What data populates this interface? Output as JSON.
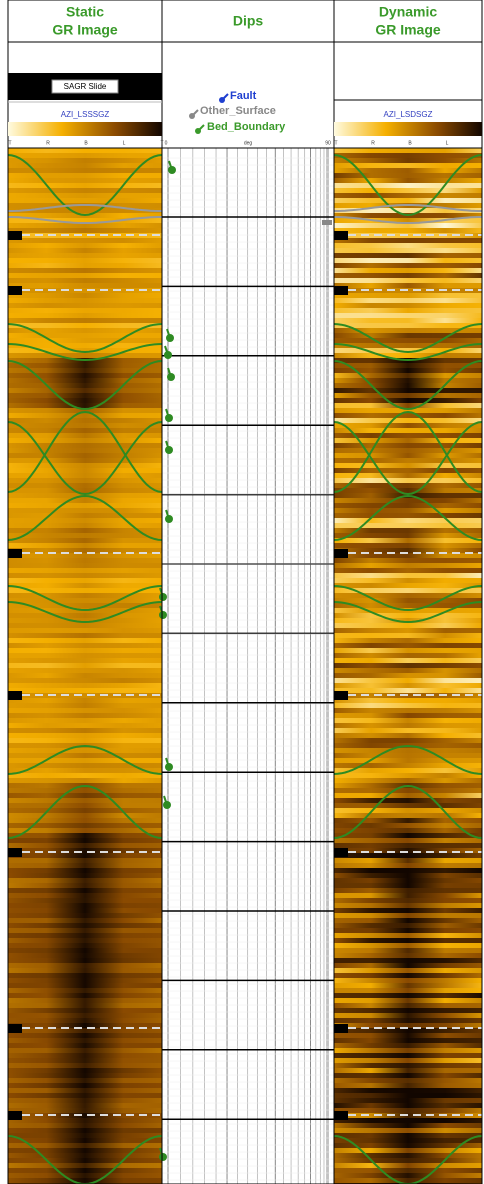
{
  "tracks": [
    {
      "title_lines": [
        "Static",
        "GR Image"
      ],
      "slide_label": "SAGR Slide",
      "curve_label": "AZI_LSSSGZ",
      "scale": [
        "T",
        "R",
        "B",
        "L",
        "T"
      ]
    },
    {
      "title_lines": [
        "Dips"
      ],
      "legend": [
        {
          "label": "Fault"
        },
        {
          "label": "Other_Surface"
        },
        {
          "label": "Bed_Boundary"
        }
      ],
      "scale": {
        "min": "0",
        "unit": "deg",
        "max": "90"
      }
    },
    {
      "title_lines": [
        "Dynamic",
        "GR Image"
      ],
      "curve_label": "AZI_LSDSGZ",
      "scale": [
        "T",
        "R",
        "B",
        "L"
      ]
    }
  ]
}
